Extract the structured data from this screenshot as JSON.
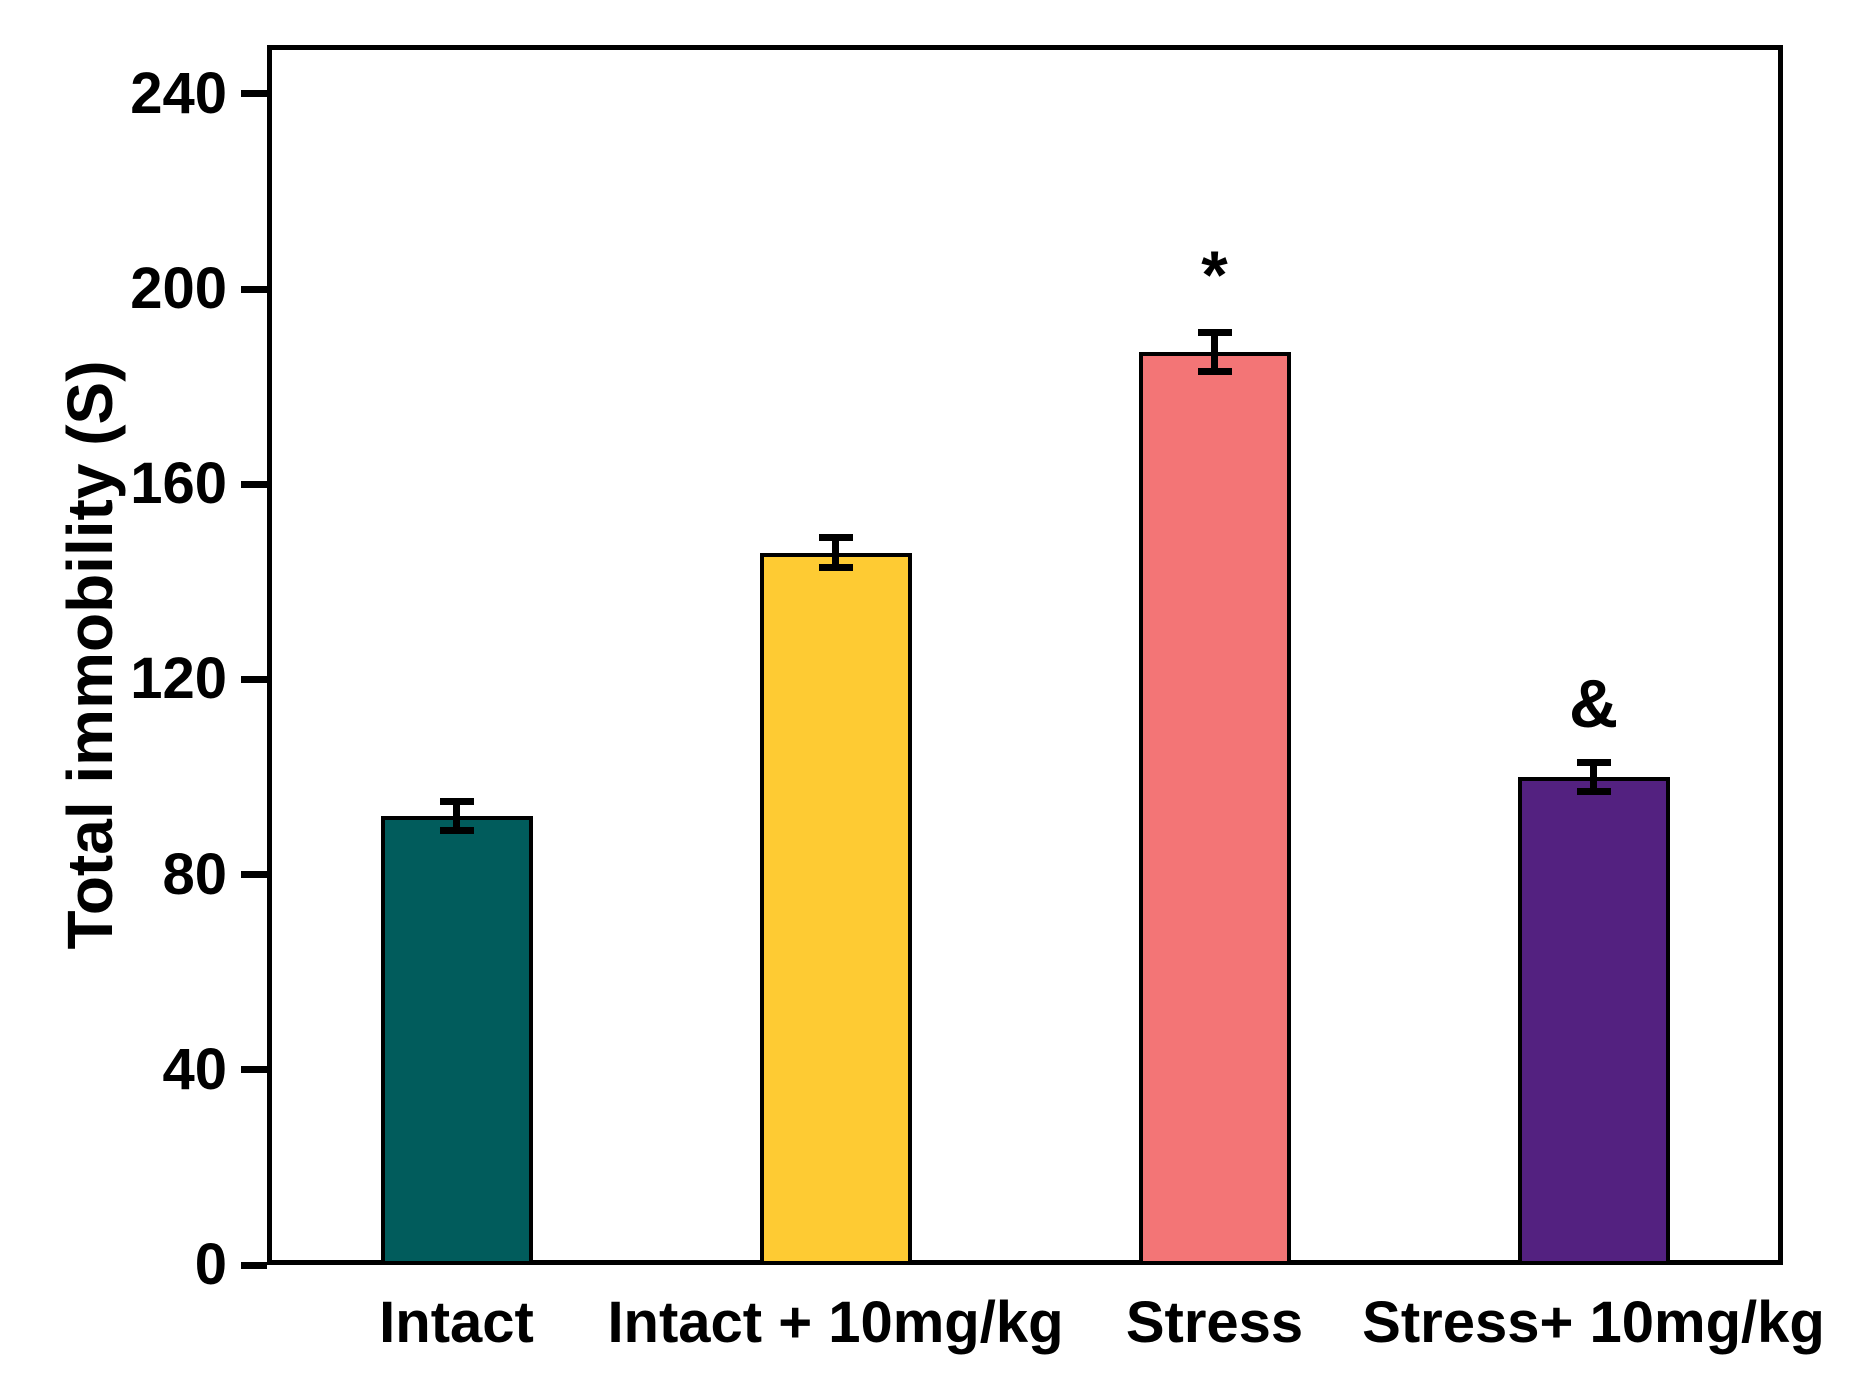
{
  "figure": {
    "background_color": "#ffffff",
    "axis_color": "#000000",
    "text_color": "#000000"
  },
  "chart_data": {
    "type": "bar",
    "title": "",
    "xlabel": "",
    "ylabel": "Total immobility (S)",
    "categories": [
      "Intact",
      "Intact + 10mg/kg",
      "Stress",
      "Stress+ 10mg/kg"
    ],
    "values": [
      92,
      146,
      187,
      100
    ],
    "errors": [
      3,
      3,
      4,
      3
    ],
    "annotations": [
      "",
      "",
      "*",
      "&"
    ],
    "bar_colors": [
      "#015c5c",
      "#fecb33",
      "#f37576",
      "#532180"
    ],
    "yticks": [
      0,
      40,
      80,
      120,
      160,
      200,
      240
    ],
    "ylim": [
      0,
      250
    ],
    "grid": false,
    "legend": "none",
    "error_bars": "shown, black caps",
    "frame": "full box around plot area"
  }
}
